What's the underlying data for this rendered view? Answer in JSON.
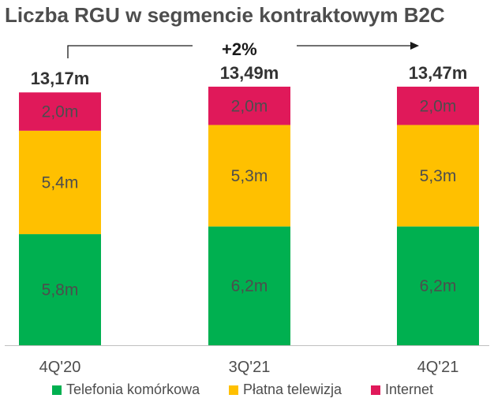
{
  "title": "Liczba RGU w segmencie kontraktowym B2C",
  "growth_label": "+2%",
  "colors": {
    "mobile": "#00b050",
    "tv": "#ffc000",
    "internet": "#e0195a",
    "segment_text": "#4d4d4d",
    "axis": "#bfbfbf"
  },
  "legend": [
    {
      "label": "Telefonia komórkowa",
      "series": "mobile"
    },
    {
      "label": "Płatna telewizja",
      "series": "tv"
    },
    {
      "label": "Internet",
      "series": "internet"
    }
  ],
  "chart_data": {
    "type": "bar",
    "stacked": true,
    "title": "Liczba RGU w segmencie kontraktowym B2C",
    "categories": [
      "4Q'20",
      "3Q'21",
      "4Q'21"
    ],
    "totals": [
      "13,17m",
      "13,49m",
      "13,47m"
    ],
    "series": [
      {
        "key": "mobile",
        "name": "Telefonia komórkowa",
        "values": [
          5.8,
          6.2,
          6.2
        ],
        "labels": [
          "5,8m",
          "6,2m",
          "6,2m"
        ]
      },
      {
        "key": "tv",
        "name": "Płatna telewizja",
        "values": [
          5.4,
          5.3,
          5.3
        ],
        "labels": [
          "5,4m",
          "5,3m",
          "5,3m"
        ]
      },
      {
        "key": "internet",
        "name": "Internet",
        "values": [
          2.0,
          2.0,
          2.0
        ],
        "labels": [
          "2,0m",
          "2,0m",
          "2,0m"
        ]
      }
    ],
    "annotation": {
      "from": "4Q'20",
      "to": "4Q'21",
      "label": "+2%"
    },
    "legend_position": "bottom"
  }
}
